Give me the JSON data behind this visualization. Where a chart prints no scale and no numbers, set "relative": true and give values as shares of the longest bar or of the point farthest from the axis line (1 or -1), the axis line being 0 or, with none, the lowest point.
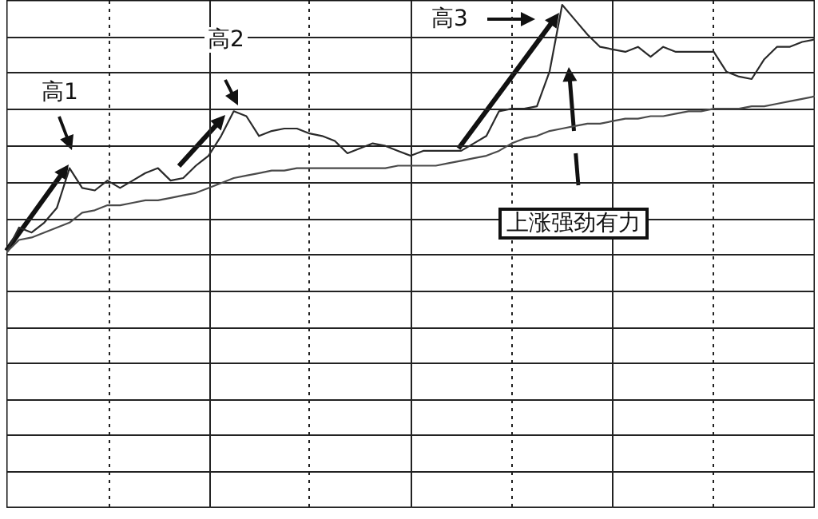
{
  "chart_data": {
    "type": "line",
    "relative": true,
    "grid": true,
    "categories": [
      null,
      null,
      null,
      null,
      null,
      null,
      null,
      null,
      null,
      null,
      null,
      null,
      null,
      null,
      null,
      null,
      null,
      null,
      null,
      null,
      null,
      null,
      null,
      null,
      null,
      null,
      null,
      null,
      null,
      null,
      null,
      null,
      null,
      null,
      null,
      null,
      null,
      null,
      null,
      null,
      null,
      null,
      null,
      null,
      null,
      null,
      null,
      null,
      null,
      null,
      null,
      null,
      null,
      null,
      null,
      null,
      null,
      null,
      null,
      null,
      null,
      null,
      null,
      null,
      null
    ],
    "series": [
      {
        "color": "#2a2a2a",
        "values": [
          0,
          0.1,
          0.08,
          0.12,
          0.18,
          0.34,
          0.26,
          0.25,
          0.29,
          0.26,
          0.29,
          0.32,
          0.34,
          0.29,
          0.3,
          0.35,
          0.39,
          0.47,
          0.57,
          0.55,
          0.47,
          0.49,
          0.5,
          0.5,
          0.48,
          0.47,
          0.45,
          0.4,
          0.42,
          0.44,
          0.43,
          0.41,
          0.39,
          0.41,
          0.41,
          0.41,
          0.41,
          0.44,
          0.47,
          0.57,
          0.58,
          0.58,
          0.59,
          0.73,
          1,
          0.94,
          0.88,
          0.83,
          0.82,
          0.81,
          0.83,
          0.79,
          0.83,
          0.81,
          0.81,
          0.81,
          0.81,
          0.73,
          0.71,
          0.7,
          0.78,
          0.83,
          0.83,
          0.85,
          0.86
        ]
      },
      {
        "color": "#4a4a4a",
        "values": [
          0,
          0.05,
          0.06,
          0.08,
          0.1,
          0.12,
          0.16,
          0.17,
          0.19,
          0.19,
          0.2,
          0.21,
          0.21,
          0.22,
          0.23,
          0.24,
          0.26,
          0.28,
          0.3,
          0.31,
          0.32,
          0.33,
          0.33,
          0.34,
          0.34,
          0.34,
          0.34,
          0.34,
          0.34,
          0.34,
          0.34,
          0.35,
          0.35,
          0.35,
          0.35,
          0.36,
          0.37,
          0.38,
          0.39,
          0.41,
          0.44,
          0.46,
          0.47,
          0.49,
          0.5,
          0.51,
          0.52,
          0.52,
          0.53,
          0.54,
          0.54,
          0.55,
          0.55,
          0.56,
          0.57,
          0.57,
          0.58,
          0.58,
          0.58,
          0.59,
          0.59,
          0.6,
          0.61,
          0.62,
          0.63
        ]
      }
    ],
    "annotations": [
      "高1",
      "高2",
      "高3",
      "上涨强劲有力"
    ]
  }
}
